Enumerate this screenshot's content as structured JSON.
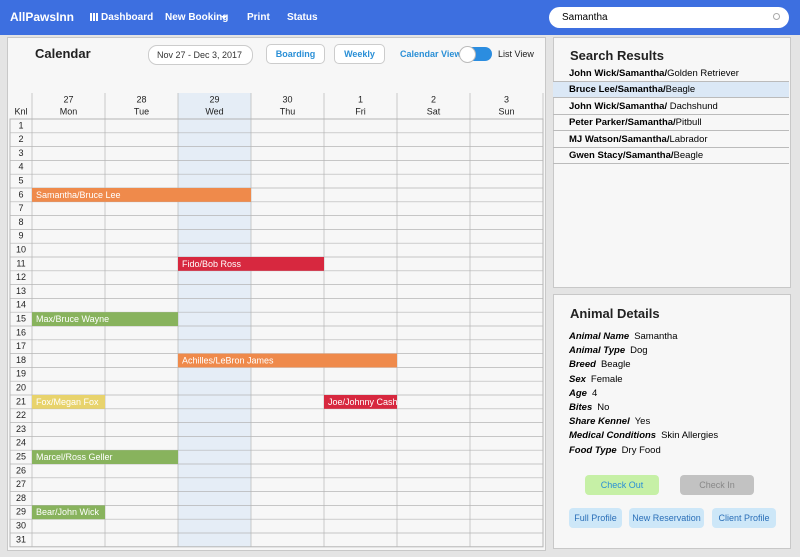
{
  "nav": {
    "brand": "AllPawsInn",
    "links": [
      "Dashboard",
      "New Booking",
      "Print",
      "Status"
    ],
    "search": "Samantha"
  },
  "calendar": {
    "title": "Calendar",
    "range": "Nov 27 - Dec 3, 2017",
    "filters": [
      "Boarding",
      "Weekly"
    ],
    "view_left": "Calendar View",
    "view_right": "List View",
    "kennel_header": "Knl",
    "days": [
      {
        "date": 27,
        "name": "Mon"
      },
      {
        "date": 28,
        "name": "Tue"
      },
      {
        "date": 29,
        "name": "Wed"
      },
      {
        "date": 30,
        "name": "Thu"
      },
      {
        "date": 1,
        "name": "Fri"
      },
      {
        "date": 2,
        "name": "Sat"
      },
      {
        "date": 3,
        "name": "Sun"
      }
    ],
    "kennels": [
      1,
      2,
      3,
      4,
      5,
      6,
      7,
      8,
      9,
      10,
      11,
      12,
      13,
      14,
      15,
      16,
      17,
      18,
      19,
      20,
      21,
      22,
      23,
      24,
      25,
      26,
      27,
      28,
      29,
      30,
      31
    ],
    "bookings": [
      "Samantha/Bruce Lee",
      "Fido/Bob Ross",
      "Max/Bruce Wayne",
      "Achilles/LeBron James",
      "Fox/Megan Fox",
      "Joe/Johnny Cash",
      "Marcel/Ross Geller",
      "Bear/John Wick"
    ]
  },
  "search_results": {
    "title": "Search Results",
    "items": [
      {
        "name": "John Wick/Samantha/",
        "breed": "Golden Retriever"
      },
      {
        "name": "Bruce Lee/Samantha/",
        "breed": "Beagle"
      },
      {
        "name": "John Wick/Samantha/",
        "breed": " Dachshund"
      },
      {
        "name": "Peter Parker/Samantha/",
        "breed": "Pitbull"
      },
      {
        "name": "MJ Watson/Samantha/",
        "breed": "Labrador"
      },
      {
        "name": "Gwen Stacy/Samantha/",
        "breed": "Beagle"
      }
    ]
  },
  "animal_details": {
    "title": "Animal Details",
    "fields": [
      {
        "label": "Animal Name",
        "value": "Samantha"
      },
      {
        "label": "Animal Type",
        "value": "Dog"
      },
      {
        "label": "Breed",
        "value": "Beagle"
      },
      {
        "label": "Sex",
        "value": "Female"
      },
      {
        "label": "Age",
        "value": "4"
      },
      {
        "label": "Bites",
        "value": "No"
      },
      {
        "label": "Share Kennel",
        "value": "Yes"
      },
      {
        "label": "Medical Conditions",
        "value": "Skin Allergies"
      },
      {
        "label": "Food Type",
        "value": "Dry Food"
      }
    ],
    "actions": [
      "Check Out",
      "Check In"
    ],
    "links": [
      "Full Profile",
      "New Reservation",
      "Client Profile"
    ]
  }
}
